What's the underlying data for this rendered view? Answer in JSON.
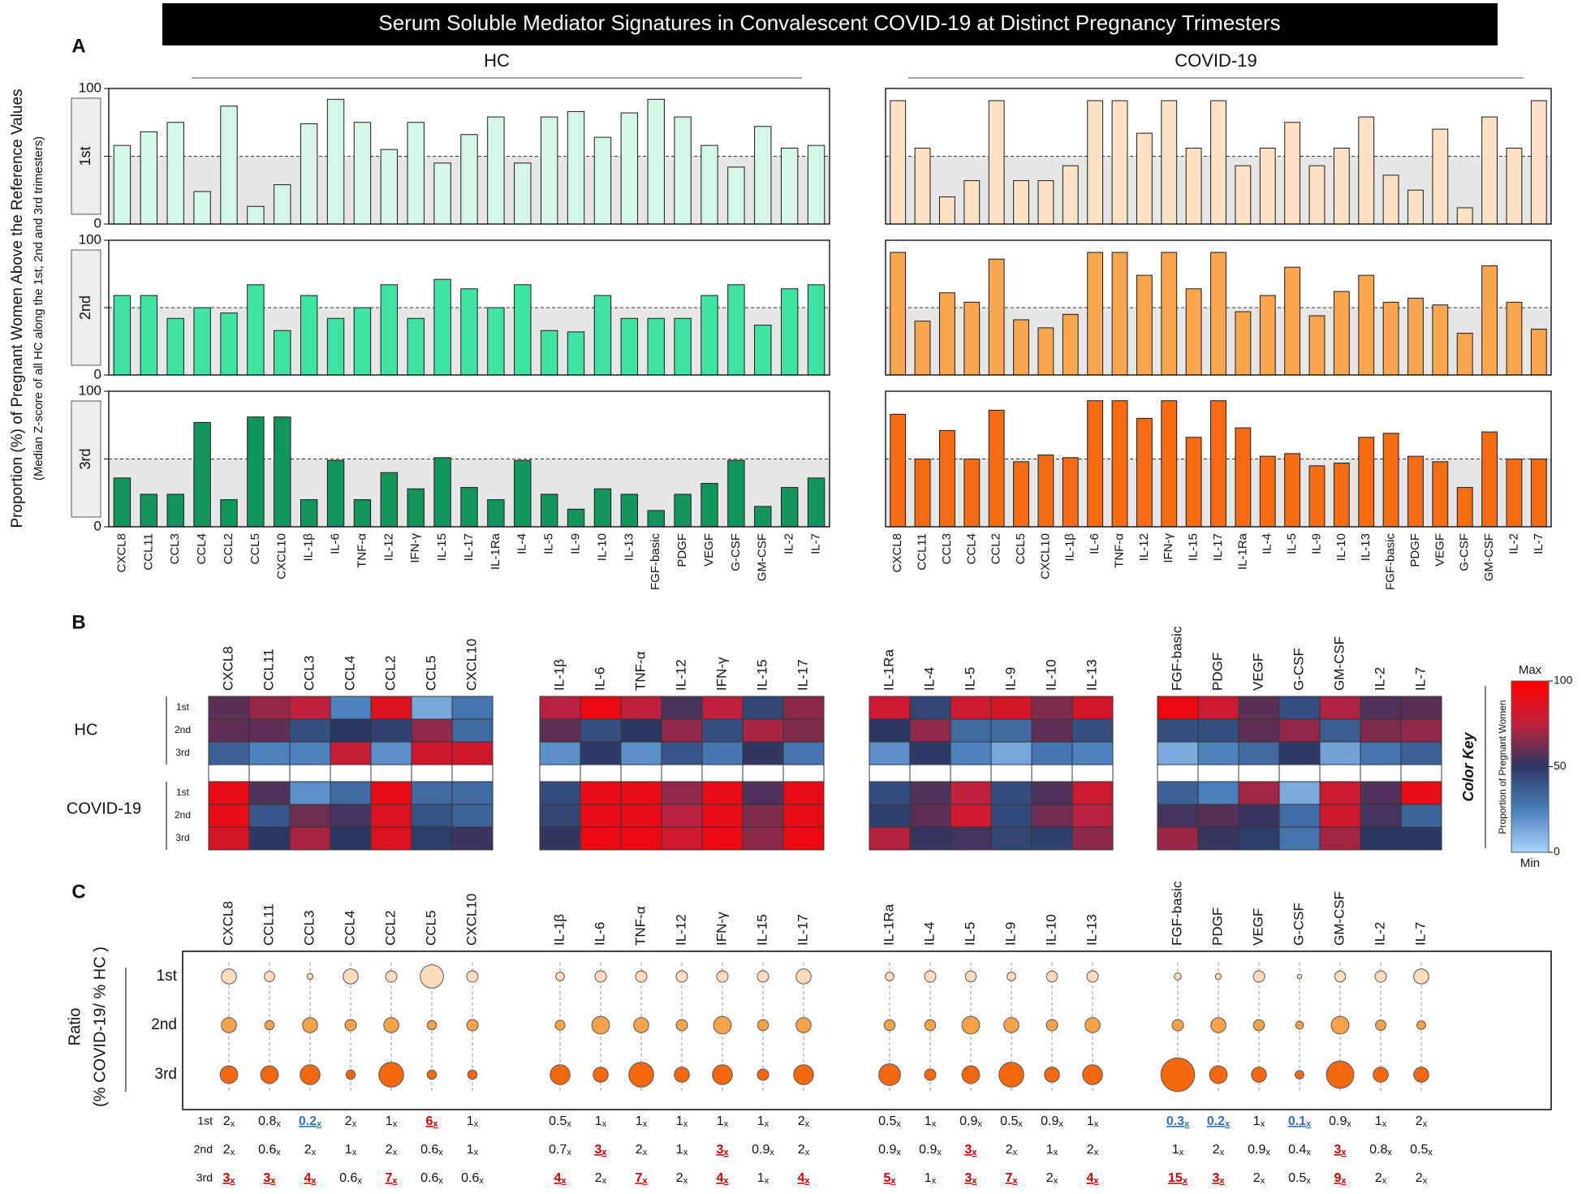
{
  "title": "Serum Soluble Mediator Signatures in Convalescent COVID-19 at Distinct Pregnancy Trimesters",
  "panel_labels": [
    "A",
    "B",
    "C"
  ],
  "chart_data": [
    {
      "type": "bar",
      "y_label": "Proportion (%) of Pregnant Women Above the Reference Values",
      "y_sublabel": "(Median Z-score of all HC along the 1st, 2nd and 3rd trimesters)",
      "categories": [
        "CXCL8",
        "CCL11",
        "CCL3",
        "CCL4",
        "CCL2",
        "CCL5",
        "CXCL10",
        "IL-1β",
        "IL-6",
        "TNF-α",
        "IL-12",
        "IFN-γ",
        "IL-15",
        "IL-17",
        "IL-1Ra",
        "IL-4",
        "IL-5",
        "IL-9",
        "IL-10",
        "IL-13",
        "FGF-basic",
        "PDGF",
        "VEGF",
        "G-CSF",
        "GM-CSF",
        "IL-2",
        "IL-7"
      ],
      "ylim": [
        0,
        100
      ],
      "yticks": [
        0,
        50,
        100
      ],
      "reference_line": 50,
      "reference_fill": "#e6e6e6",
      "panels": [
        {
          "name": "HC",
          "series": [
            {
              "name": "1st",
              "color": "#d3f6e7",
              "values": [
                58,
                68,
                75,
                24,
                87,
                13,
                29,
                74,
                92,
                75,
                55,
                75,
                45,
                66,
                79,
                45,
                79,
                83,
                64,
                82,
                92,
                79,
                58,
                42,
                72,
                56,
                58
              ]
            },
            {
              "name": "2nd",
              "color": "#3fe3a2",
              "values": [
                59,
                59,
                42,
                50,
                46,
                67,
                33,
                59,
                42,
                50,
                67,
                42,
                71,
                64,
                50,
                67,
                33,
                32,
                59,
                42,
                42,
                42,
                59,
                67,
                37,
                64,
                67
              ]
            },
            {
              "name": "3rd",
              "color": "#12965c",
              "values": [
                36,
                24,
                24,
                77,
                20,
                81,
                81,
                20,
                49,
                20,
                40,
                28,
                51,
                29,
                20,
                49,
                24,
                13,
                28,
                24,
                12,
                24,
                32,
                49,
                15,
                29,
                36
              ]
            }
          ]
        },
        {
          "name": "COVID-19",
          "series": [
            {
              "color": "#fde1c4",
              "values": [
                91,
                56,
                20,
                32,
                91,
                32,
                32,
                43,
                91,
                91,
                67,
                91,
                56,
                91,
                43,
                56,
                75,
                43,
                56,
                79,
                36,
                25,
                70,
                12,
                79,
                56,
                91
              ]
            },
            {
              "color": "#f9a64e",
              "values": [
                91,
                40,
                61,
                54,
                86,
                41,
                35,
                45,
                91,
                91,
                74,
                91,
                64,
                91,
                47,
                59,
                80,
                44,
                62,
                74,
                54,
                57,
                52,
                31,
                81,
                54,
                34
              ]
            },
            {
              "color": "#f76b12",
              "values": [
                83,
                50,
                71,
                50,
                86,
                48,
                53,
                51,
                93,
                93,
                80,
                93,
                66,
                93,
                73,
                52,
                54,
                45,
                47,
                66,
                69,
                52,
                48,
                29,
                70,
                50,
                50
              ]
            }
          ]
        }
      ]
    },
    {
      "type": "heatmap",
      "rows": [
        "HC",
        "COVID-19"
      ],
      "colorscale": [
        "#a9d3fb",
        "#4a7fbd",
        "#2c3864",
        "#c0203c",
        "#ff0000"
      ],
      "zlim": [
        0,
        100
      ],
      "zticks": [
        0,
        50,
        100
      ],
      "color_key_title": "Color Key",
      "color_key_label": "Proportion of Pregnant Women",
      "color_key_max": "Max",
      "color_key_min": "Min"
    },
    {
      "type": "bubble",
      "y_label": "Ratio",
      "y_sublabel": "(% COVID-19/ % HC )",
      "series": [
        {
          "color": "#fddcbc",
          "values": [
            2,
            0.8,
            0.2,
            2,
            1,
            6,
            1,
            0.5,
            1,
            1,
            1,
            1,
            1,
            2,
            0.5,
            1,
            0.9,
            0.5,
            0.9,
            1,
            0.3,
            0.2,
            1,
            0.1,
            0.9,
            1,
            2
          ],
          "value_labels": [
            "2x",
            "0.8x",
            "0.2x",
            "2x",
            "1x",
            "6x",
            "1x",
            "0.5x",
            "1x",
            "1x",
            "1x",
            "1x",
            "1x",
            "2x",
            "0.5x",
            "1x",
            "0.9x",
            "0.5x",
            "0.9x",
            "1x",
            "0.3x",
            "0.2x",
            "1x",
            "0.1x",
            "0.9x",
            "1x",
            "2x"
          ],
          "label_colors": [
            null,
            null,
            "#2e75b6",
            null,
            null,
            "#d00000",
            null,
            null,
            null,
            null,
            null,
            null,
            null,
            null,
            null,
            null,
            null,
            null,
            null,
            null,
            "#2e75b6",
            "#2e75b6",
            null,
            "#2e75b6",
            null,
            null,
            null
          ]
        },
        {
          "color": "#f8a24a",
          "values": [
            2,
            0.6,
            2,
            1,
            2,
            0.6,
            1,
            0.7,
            3,
            2,
            1,
            3,
            0.9,
            2,
            0.9,
            0.9,
            3,
            2,
            1,
            2,
            1,
            2,
            0.9,
            0.4,
            3,
            0.8,
            0.5
          ],
          "value_labels": [
            "2x",
            "0.6x",
            "2x",
            "1x",
            "2x",
            "0.6x",
            "1x",
            "0.7x",
            "3x",
            "2x",
            "1x",
            "3x",
            "0.9x",
            "2x",
            "0.9x",
            "0.9x",
            "3x",
            "2x",
            "1x",
            "2x",
            "1x",
            "2x",
            "0.9x",
            "0.4x",
            "3x",
            "0.8x",
            "0.5x"
          ],
          "label_colors": [
            null,
            null,
            null,
            null,
            null,
            null,
            null,
            null,
            "#d00000",
            null,
            null,
            "#d00000",
            null,
            null,
            null,
            null,
            "#d00000",
            null,
            null,
            null,
            null,
            null,
            null,
            null,
            "#d00000",
            null,
            null
          ]
        },
        {
          "color": "#f5680e",
          "values": [
            3,
            3,
            4,
            0.6,
            7,
            0.6,
            0.6,
            4,
            2,
            7,
            2,
            4,
            1,
            4,
            5,
            1,
            3,
            7,
            2,
            4,
            15,
            3,
            2,
            0.5,
            9,
            2,
            2
          ],
          "value_labels": [
            "3x",
            "3x",
            "4x",
            "0.6x",
            "7x",
            "0.6x",
            "0.6x",
            "4x",
            "2x",
            "7x",
            "2x",
            "4x",
            "1x",
            "4x",
            "5x",
            "1x",
            "3x",
            "7x",
            "2x",
            "4x",
            "15x",
            "3x",
            "2x",
            "0.5x",
            "9x",
            "2x",
            "2x"
          ],
          "label_colors": [
            "#d00000",
            "#d00000",
            "#d00000",
            null,
            "#d00000",
            null,
            null,
            "#d00000",
            null,
            "#d00000",
            null,
            "#d00000",
            null,
            "#d00000",
            "#d00000",
            null,
            "#d00000",
            "#d00000",
            null,
            "#d00000",
            "#d00000",
            "#d00000",
            null,
            null,
            "#d00000",
            null,
            null
          ]
        }
      ]
    }
  ]
}
